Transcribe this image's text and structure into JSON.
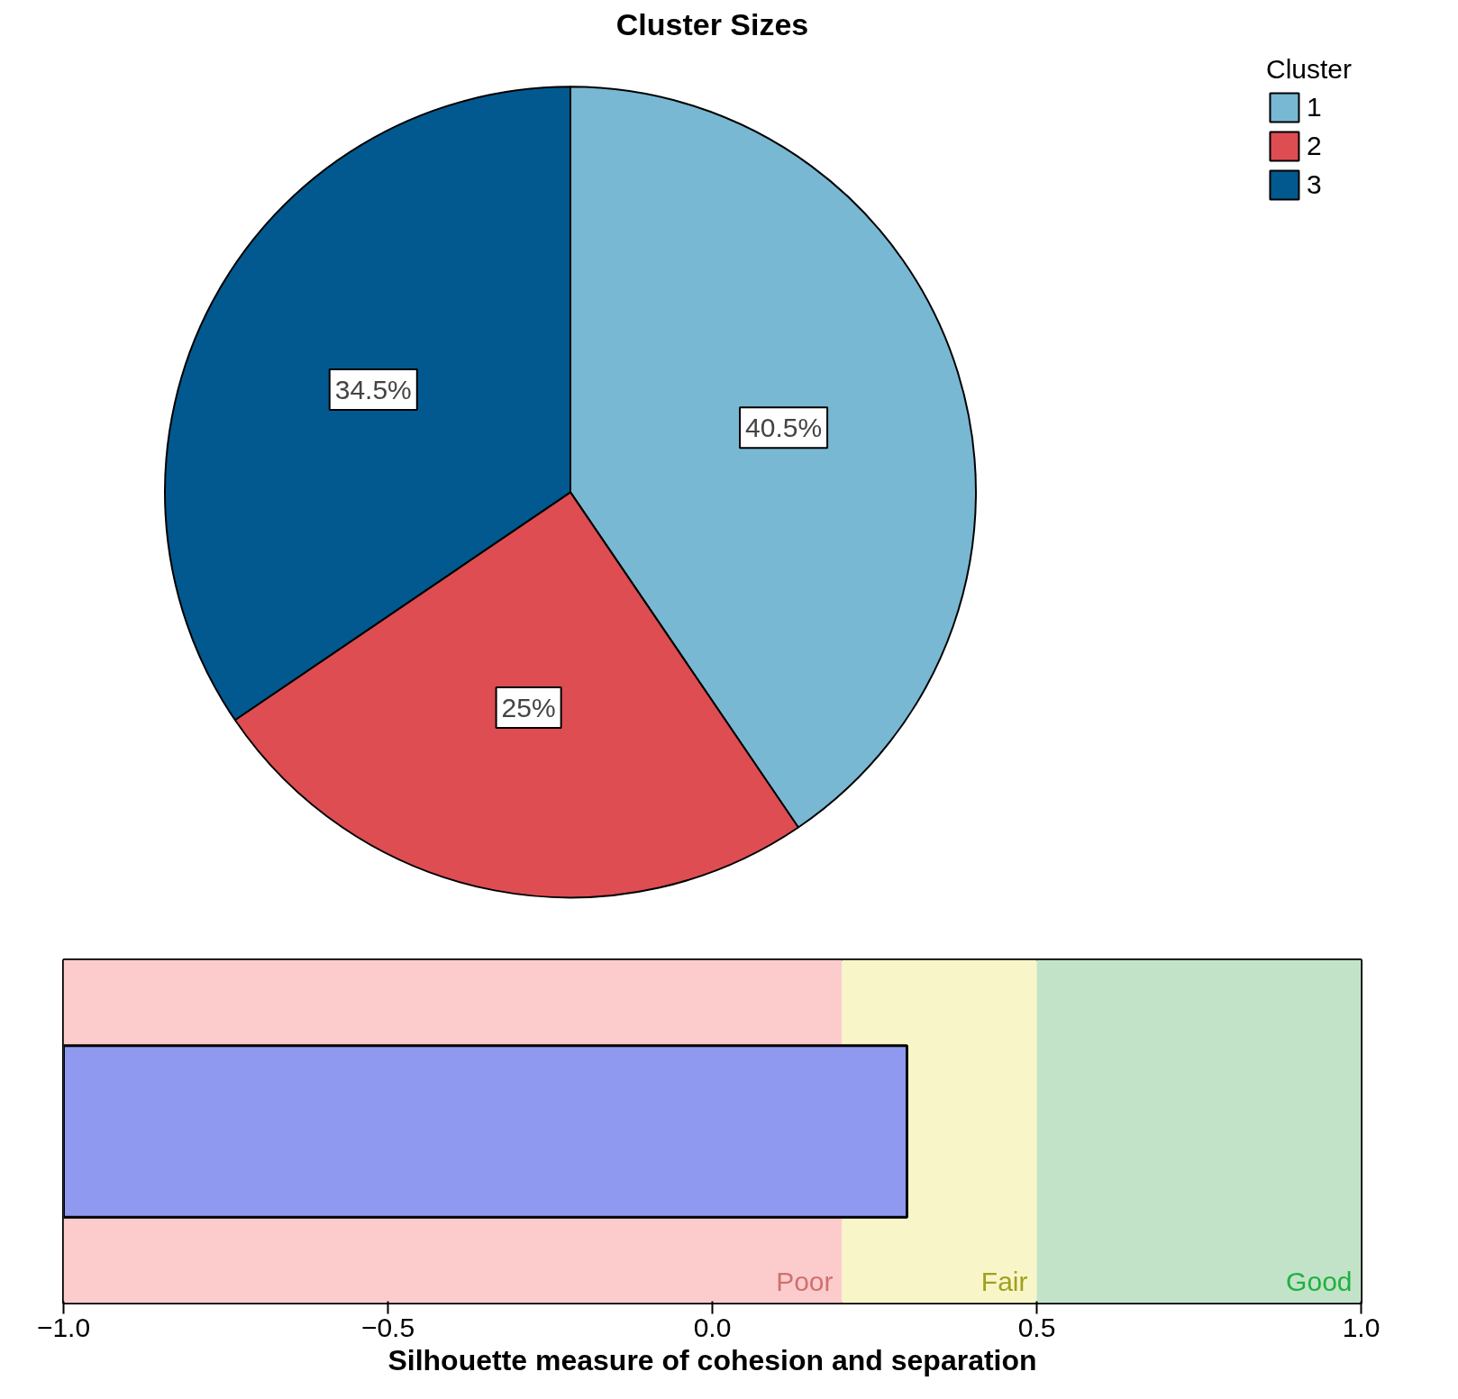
{
  "chart_data": [
    {
      "type": "pie",
      "title": "Cluster Sizes",
      "legend_title": "Cluster",
      "legend": "top right",
      "value_labels": [
        "40.5%",
        "25%",
        "34.5%"
      ],
      "categories": [
        "1",
        "2",
        "3"
      ],
      "values": [
        40.5,
        25,
        34.5
      ],
      "colors": [
        "#78b8d3",
        "#dd4d52",
        "#02598f"
      ]
    },
    {
      "type": "bar",
      "orientation": "horizontal",
      "xlabel": "Silhouette measure of cohesion and separation",
      "categories": [
        null
      ],
      "values": [
        1.3
      ],
      "base": [
        -1.0
      ],
      "color": "#8f99f0",
      "grid": false,
      "xlim": [
        -1.0,
        1.0
      ],
      "xticks": [
        {
          "value": -1.0,
          "label": "−1.0"
        },
        {
          "value": -0.5,
          "label": "−0.5"
        },
        {
          "value": 0,
          "label": "0.0"
        },
        {
          "value": 0.5,
          "label": "0.5"
        },
        {
          "value": 1.0,
          "label": "1.0"
        }
      ],
      "bands": [
        {
          "axis": "x",
          "from": -1.0,
          "to": 0.2,
          "label": "Poor",
          "color": "#fccccc"
        },
        {
          "axis": "x",
          "from": 0.2,
          "to": 0.5,
          "label": "Fair",
          "color": "#f8f6c8"
        },
        {
          "axis": "x",
          "from": 0.5,
          "to": 1.0,
          "label": "Good",
          "color": "#c2e3c8"
        }
      ]
    }
  ]
}
